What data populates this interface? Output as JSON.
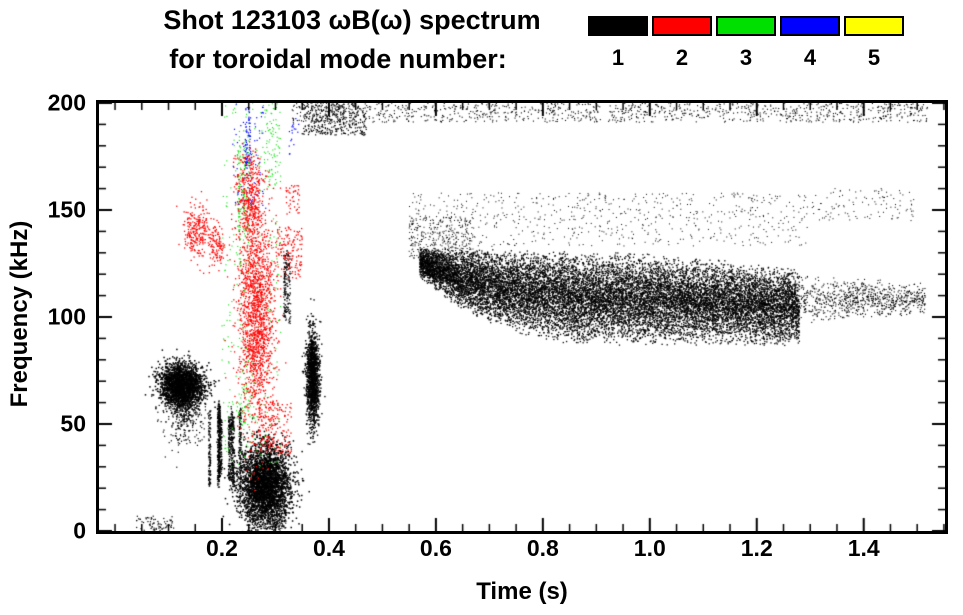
{
  "title": {
    "line1": "Shot 123103 ωB(ω) spectrum",
    "line2": "for toroidal mode number:"
  },
  "legend": {
    "items": [
      {
        "label": "1",
        "color": "#000000"
      },
      {
        "label": "2",
        "color": "#ff0000"
      },
      {
        "label": "3",
        "color": "#00e000"
      },
      {
        "label": "4",
        "color": "#0000ff"
      },
      {
        "label": "5",
        "color": "#ffff00"
      }
    ]
  },
  "chart_data": {
    "type": "scatter",
    "title": "Shot 123103 ωB(ω) spectrum for toroidal mode number: 1 2 3 4 5",
    "xlabel": "Time (s)",
    "ylabel": "Frequency (kHz)",
    "xlim": [
      -0.03,
      1.552
    ],
    "ylim": [
      0,
      200
    ],
    "xticks": [
      0.2,
      0.4,
      0.6,
      0.8,
      1.0,
      1.2,
      1.4
    ],
    "xtick_labels": [
      "0.2",
      "0.4",
      "0.6",
      "0.8",
      "1.0",
      "1.2",
      "1.4"
    ],
    "yticks": [
      0,
      50,
      100,
      150,
      200
    ],
    "ytick_labels": [
      "0",
      "50",
      "100",
      "150",
      "200"
    ],
    "xtick_minor": 0.05,
    "ytick_minor": 10,
    "grid": false,
    "legend_position": "top-right",
    "series_colors": {
      "1": "#000000",
      "2": "#ff0000",
      "3": "#00e000",
      "4": "#0000ff",
      "5": "#ffff00"
    },
    "clusters": [
      {
        "mode": 1,
        "type": "gauss",
        "ct": 0.125,
        "cf": 68,
        "st": 0.02,
        "sf": 5,
        "n": 2200,
        "size": 1.5
      },
      {
        "mode": 1,
        "type": "gauss",
        "ct": 0.13,
        "cf": 57,
        "st": 0.018,
        "sf": 8,
        "n": 450,
        "size": 1.2
      },
      {
        "mode": 1,
        "type": "vlines",
        "t0": 0.175,
        "t1": 0.235,
        "f0": 18,
        "f1": 62,
        "lines": 9,
        "pts": 110,
        "size": 1.3
      },
      {
        "mode": 1,
        "type": "gauss",
        "ct": 0.28,
        "cf": 22,
        "st": 0.024,
        "sf": 9,
        "n": 3200,
        "size": 1.5
      },
      {
        "mode": 1,
        "type": "uniform",
        "t0": 0.25,
        "t1": 0.32,
        "f0": 1,
        "f1": 12,
        "n": 260,
        "size": 1.2
      },
      {
        "mode": 1,
        "type": "gauss",
        "ct": 0.37,
        "cf": 72,
        "st": 0.006,
        "sf": 11,
        "n": 1500,
        "size": 1.4
      },
      {
        "mode": 1,
        "type": "vlines",
        "t0": 0.315,
        "t1": 0.345,
        "f0": 95,
        "f1": 135,
        "lines": 4,
        "pts": 50,
        "size": 1.2
      },
      {
        "mode": 1,
        "type": "uniform",
        "t0": 0.04,
        "t1": 0.11,
        "f0": 0,
        "f1": 7,
        "n": 70,
        "size": 1.2
      },
      {
        "mode": 3,
        "type": "uniform",
        "t0": 0.2,
        "t1": 0.31,
        "f0": 30,
        "f1": 200,
        "n": 320,
        "size": 1.1
      },
      {
        "mode": 3,
        "type": "vlines",
        "t0": 0.225,
        "t1": 0.26,
        "f0": 120,
        "f1": 200,
        "lines": 5,
        "pts": 35,
        "size": 1.1
      },
      {
        "mode": 3,
        "type": "gauss",
        "ct": 0.245,
        "cf": 62,
        "st": 0.01,
        "sf": 14,
        "n": 90,
        "size": 1.1
      },
      {
        "mode": 3,
        "type": "uniform",
        "t0": 0.28,
        "t1": 0.31,
        "f0": 160,
        "f1": 200,
        "n": 70,
        "size": 1.1
      },
      {
        "mode": 4,
        "type": "uniform",
        "t0": 0.22,
        "t1": 0.285,
        "f0": 150,
        "f1": 200,
        "n": 80,
        "size": 1.2
      },
      {
        "mode": 4,
        "type": "vlines",
        "t0": 0.243,
        "t1": 0.255,
        "f0": 162,
        "f1": 200,
        "lines": 2,
        "pts": 35,
        "size": 1.2
      },
      {
        "mode": 4,
        "type": "uniform",
        "t0": 0.325,
        "t1": 0.345,
        "f0": 176,
        "f1": 194,
        "n": 18,
        "size": 1.2
      },
      {
        "mode": 2,
        "type": "gauss",
        "ct": 0.155,
        "cf": 140,
        "st": 0.013,
        "sf": 6,
        "n": 260,
        "size": 1.3
      },
      {
        "mode": 2,
        "type": "gauss",
        "ct": 0.19,
        "cf": 132,
        "st": 0.008,
        "sf": 5,
        "n": 110,
        "size": 1.3
      },
      {
        "mode": 2,
        "type": "gauss",
        "ct": 0.265,
        "cf": 100,
        "st": 0.017,
        "sf": 27,
        "n": 1700,
        "size": 1.3
      },
      {
        "mode": 2,
        "type": "gauss",
        "ct": 0.252,
        "cf": 152,
        "st": 0.012,
        "sf": 9,
        "n": 280,
        "size": 1.3
      },
      {
        "mode": 2,
        "type": "uniform",
        "t0": 0.3,
        "t1": 0.35,
        "f0": 118,
        "f1": 142,
        "n": 140,
        "size": 1.3
      },
      {
        "mode": 2,
        "type": "uniform",
        "t0": 0.32,
        "t1": 0.345,
        "f0": 148,
        "f1": 162,
        "n": 40,
        "size": 1.3
      },
      {
        "mode": 2,
        "type": "uniform",
        "t0": 0.22,
        "t1": 0.27,
        "f0": 158,
        "f1": 176,
        "n": 90,
        "size": 1.3
      },
      {
        "mode": 2,
        "type": "uniform",
        "t0": 0.27,
        "t1": 0.33,
        "f0": 35,
        "f1": 60,
        "n": 160,
        "size": 1.3
      },
      {
        "mode": 1,
        "type": "uniform",
        "t0": 0.33,
        "t1": 1.52,
        "f0": 191,
        "f1": 200,
        "n": 1100,
        "size": 1.1
      },
      {
        "mode": 1,
        "type": "uniform",
        "t0": 0.35,
        "t1": 0.47,
        "f0": 185,
        "f1": 200,
        "n": 380,
        "size": 1.2
      },
      {
        "mode": 1,
        "type": "band",
        "t0": 0.57,
        "t1": 1.28,
        "low": [
          [
            0.57,
            118
          ],
          [
            0.65,
            103
          ],
          [
            0.75,
            92
          ],
          [
            0.85,
            87
          ],
          [
            1.28,
            86
          ]
        ],
        "high": [
          [
            0.57,
            133
          ],
          [
            0.7,
            132
          ],
          [
            1.0,
            130
          ],
          [
            1.28,
            123
          ]
        ],
        "n": 15000,
        "size": 1.3
      },
      {
        "mode": 1,
        "type": "uniform",
        "t0": 0.55,
        "t1": 1.3,
        "f0": 133,
        "f1": 158,
        "n": 650,
        "size": 1.0
      },
      {
        "mode": 1,
        "type": "uniform",
        "t0": 0.55,
        "t1": 0.67,
        "f0": 127,
        "f1": 147,
        "n": 320,
        "size": 1.0
      },
      {
        "mode": 1,
        "type": "band",
        "t0": 1.28,
        "t1": 1.515,
        "low": [
          [
            1.28,
            97
          ],
          [
            1.515,
            100
          ]
        ],
        "high": [
          [
            1.28,
            120
          ],
          [
            1.515,
            116
          ]
        ],
        "n": 800,
        "size": 1.1
      },
      {
        "mode": 1,
        "type": "uniform",
        "t0": 1.3,
        "t1": 1.5,
        "f0": 145,
        "f1": 160,
        "n": 110,
        "size": 1.0
      }
    ]
  }
}
